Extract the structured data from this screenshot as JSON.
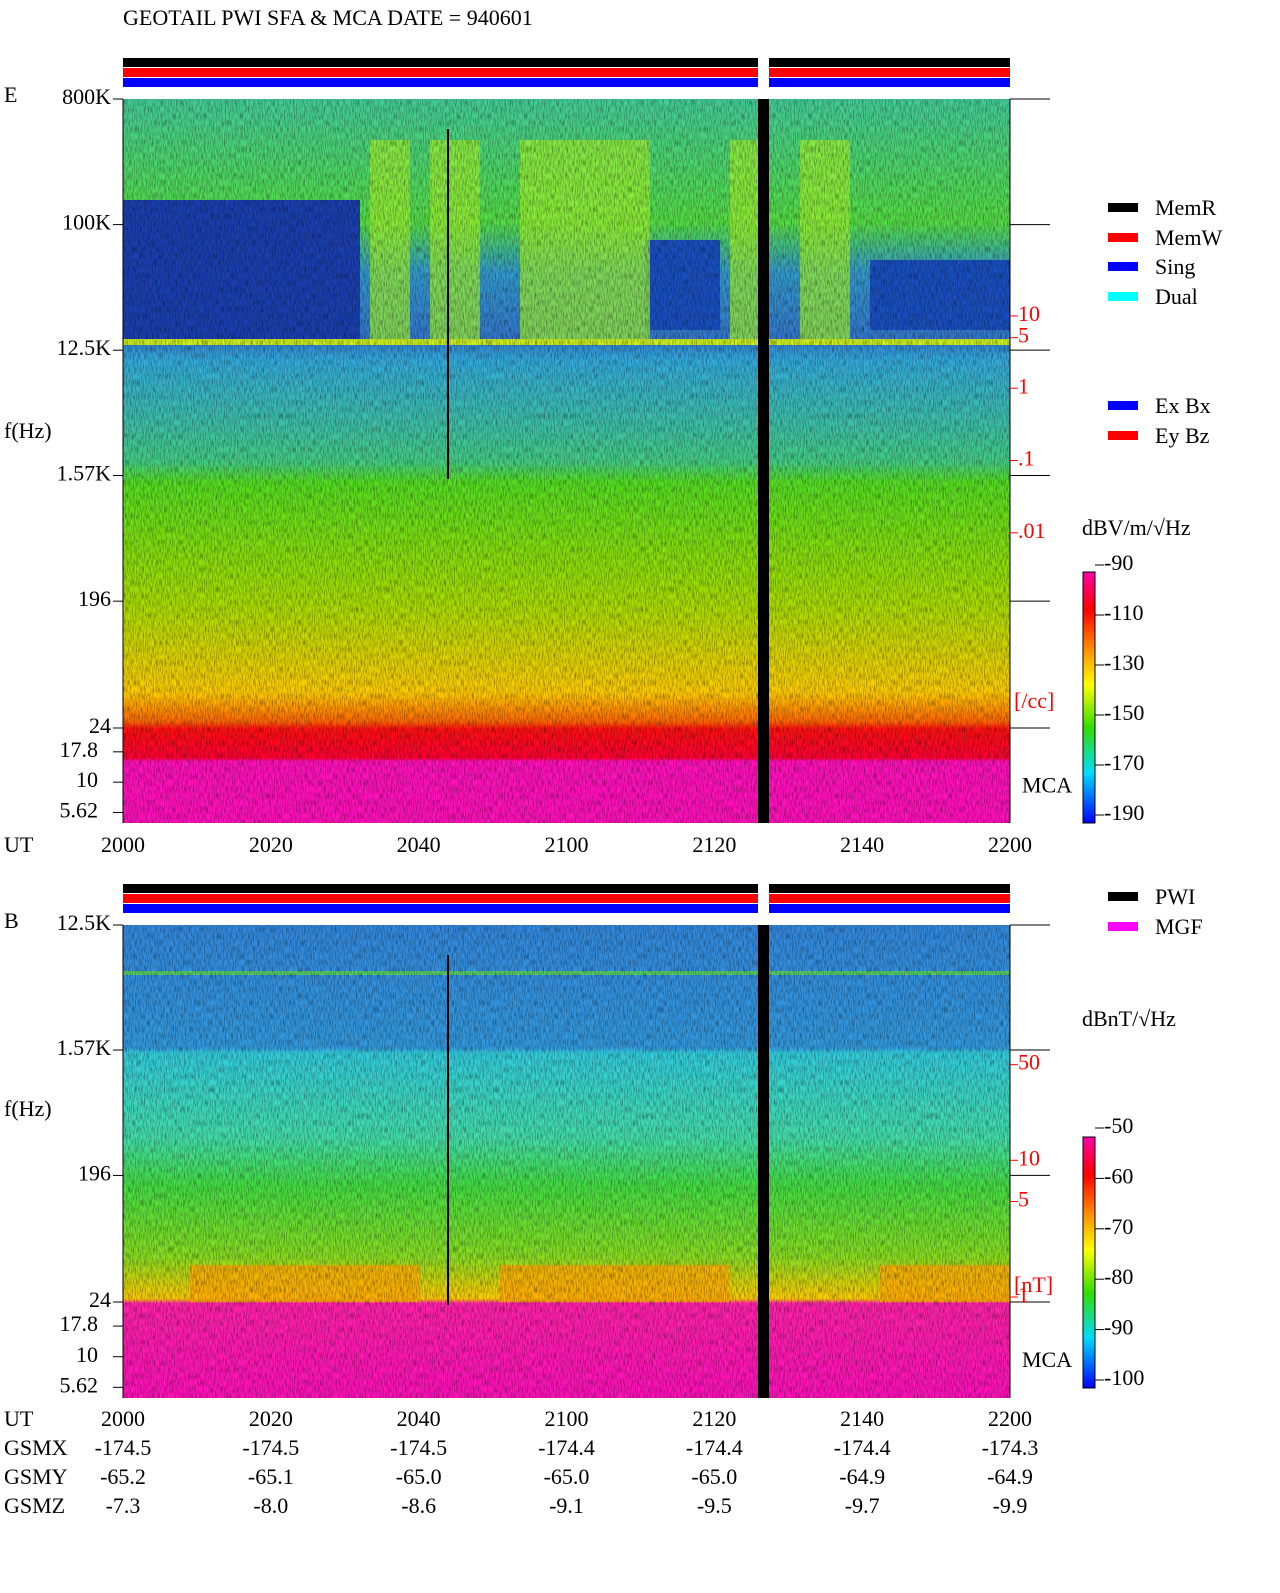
{
  "title": "GEOTAIL   PWI SFA & MCA   DATE = 940601",
  "chart_data": [
    {
      "type": "spectrogram",
      "panel_label": "E",
      "y_label": "f(Hz)",
      "x_label": "UT",
      "log_y": true,
      "ylim": [
        24,
        800000
      ],
      "yticks": [
        {
          "value": 800000,
          "label": "800K"
        },
        {
          "value": 100000,
          "label": "100K"
        },
        {
          "value": 12500,
          "label": "12.5K"
        },
        {
          "value": 1570,
          "label": "1.57K"
        },
        196,
        24
      ],
      "mca_label": "MCA",
      "mca_ylim": [
        4.6,
        28
      ],
      "mca_yticks": [
        17.8,
        10,
        5.62
      ],
      "categories": [
        "2000",
        "2020",
        "2040",
        "2100",
        "2120",
        "2140",
        "2200"
      ],
      "density_ylim": [
        2e-05,
        10000
      ],
      "density_ticks": [
        10,
        5,
        1,
        {
          "value": 0.1,
          "label": ".1"
        },
        {
          "value": 0.01,
          "label": ".01"
        }
      ],
      "density_unit": "[/cc]",
      "colorbar": {
        "label": "dBV/m/√Hz",
        "clim": [
          -190,
          -90
        ],
        "ticks": [
          -90,
          -110,
          -130,
          -150,
          -170,
          -190
        ]
      },
      "legend": [
        {
          "name": "MemR",
          "color": "#000000"
        },
        {
          "name": "MemW",
          "color": "#ff0000"
        },
        {
          "name": "Sing",
          "color": "#0000ff"
        },
        {
          "name": "Dual",
          "color": "#00ffff"
        }
      ],
      "legend2": [
        {
          "name": "Ex Bx",
          "color": "#0000ff"
        },
        {
          "name": "Ey Bz",
          "color": "#ff0000"
        }
      ]
    },
    {
      "type": "spectrogram",
      "panel_label": "B",
      "y_label": "f(Hz)",
      "x_label": "UT",
      "log_y": true,
      "ylim": [
        24,
        12500
      ],
      "yticks": [
        {
          "value": 12500,
          "label": "12.5K"
        },
        {
          "value": 1570,
          "label": "1.57K"
        },
        196,
        24
      ],
      "mca_label": "MCA",
      "mca_ylim": [
        4.6,
        28
      ],
      "mca_yticks": [
        17.8,
        10,
        5.62
      ],
      "categories": [
        "2000",
        "2020",
        "2040",
        "2100",
        "2120",
        "2140",
        "2200"
      ],
      "density_ylim": [
        0.92,
        525
      ],
      "density_ticks": [
        50,
        10,
        5,
        1
      ],
      "density_unit": "[nT]",
      "colorbar": {
        "label": "dBnT/√Hz",
        "clim": [
          -100,
          -50
        ],
        "ticks": [
          -50,
          -60,
          -70,
          -80,
          -90,
          -100
        ]
      },
      "legend": [
        {
          "name": "PWI",
          "color": "#000000"
        },
        {
          "name": "MGF",
          "color": "#ff00ff"
        }
      ]
    }
  ],
  "orbit_table": {
    "rows": [
      [
        "GSMX",
        "-174.5",
        "-174.5",
        "-174.5",
        "-174.4",
        "-174.4",
        "-174.4",
        "-174.3"
      ],
      [
        "GSMY",
        "-65.2",
        "-65.1",
        "-65.0",
        "-65.0",
        "-65.0",
        "-64.9",
        "-64.9"
      ],
      [
        "GSMZ",
        "-7.3",
        "-8.0",
        "-8.6",
        "-9.1",
        "-9.5",
        "-9.7",
        "-9.9"
      ]
    ]
  }
}
